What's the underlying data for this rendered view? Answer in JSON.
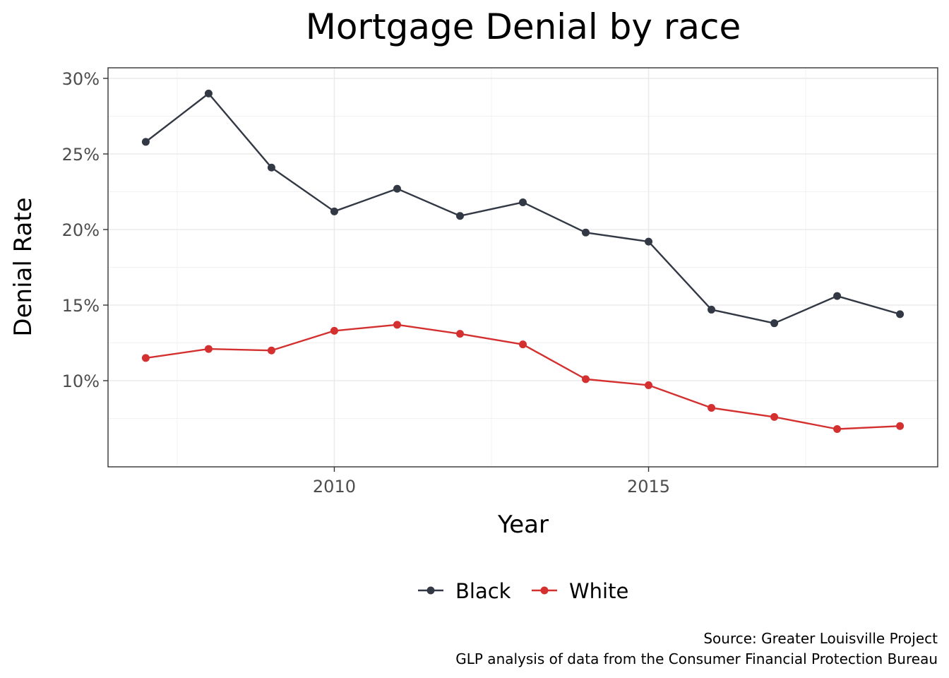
{
  "chart_data": {
    "type": "line",
    "title": "Mortgage Denial by race",
    "xlabel": "Year",
    "ylabel": "Denial Rate",
    "x": [
      2007,
      2008,
      2009,
      2010,
      2011,
      2012,
      2013,
      2014,
      2015,
      2016,
      2017,
      2018,
      2019
    ],
    "xlim": [
      2006.4,
      2019.6
    ],
    "ylim": [
      4.3,
      30.7
    ],
    "x_ticks": [
      2010,
      2015
    ],
    "x_tick_labels": [
      "2010",
      "2015"
    ],
    "y_ticks": [
      10,
      15,
      20,
      25,
      30
    ],
    "y_tick_labels": [
      "10%",
      "15%",
      "20%",
      "25%",
      "30%"
    ],
    "grid": true,
    "legend_position": "bottom",
    "series": [
      {
        "name": "Black",
        "color": "#323844",
        "values": [
          25.8,
          29.0,
          24.1,
          21.2,
          22.7,
          20.9,
          21.8,
          19.8,
          19.2,
          14.7,
          13.8,
          15.6,
          14.4
        ]
      },
      {
        "name": "White",
        "color": "#d3302f",
        "values": [
          11.5,
          12.1,
          12.0,
          13.3,
          13.7,
          13.1,
          12.4,
          10.1,
          9.7,
          8.2,
          7.6,
          6.8,
          7.0
        ]
      }
    ],
    "caption": [
      "Source: Greater Louisville Project",
      "GLP analysis of data from the Consumer Financial Protection Bureau"
    ]
  }
}
